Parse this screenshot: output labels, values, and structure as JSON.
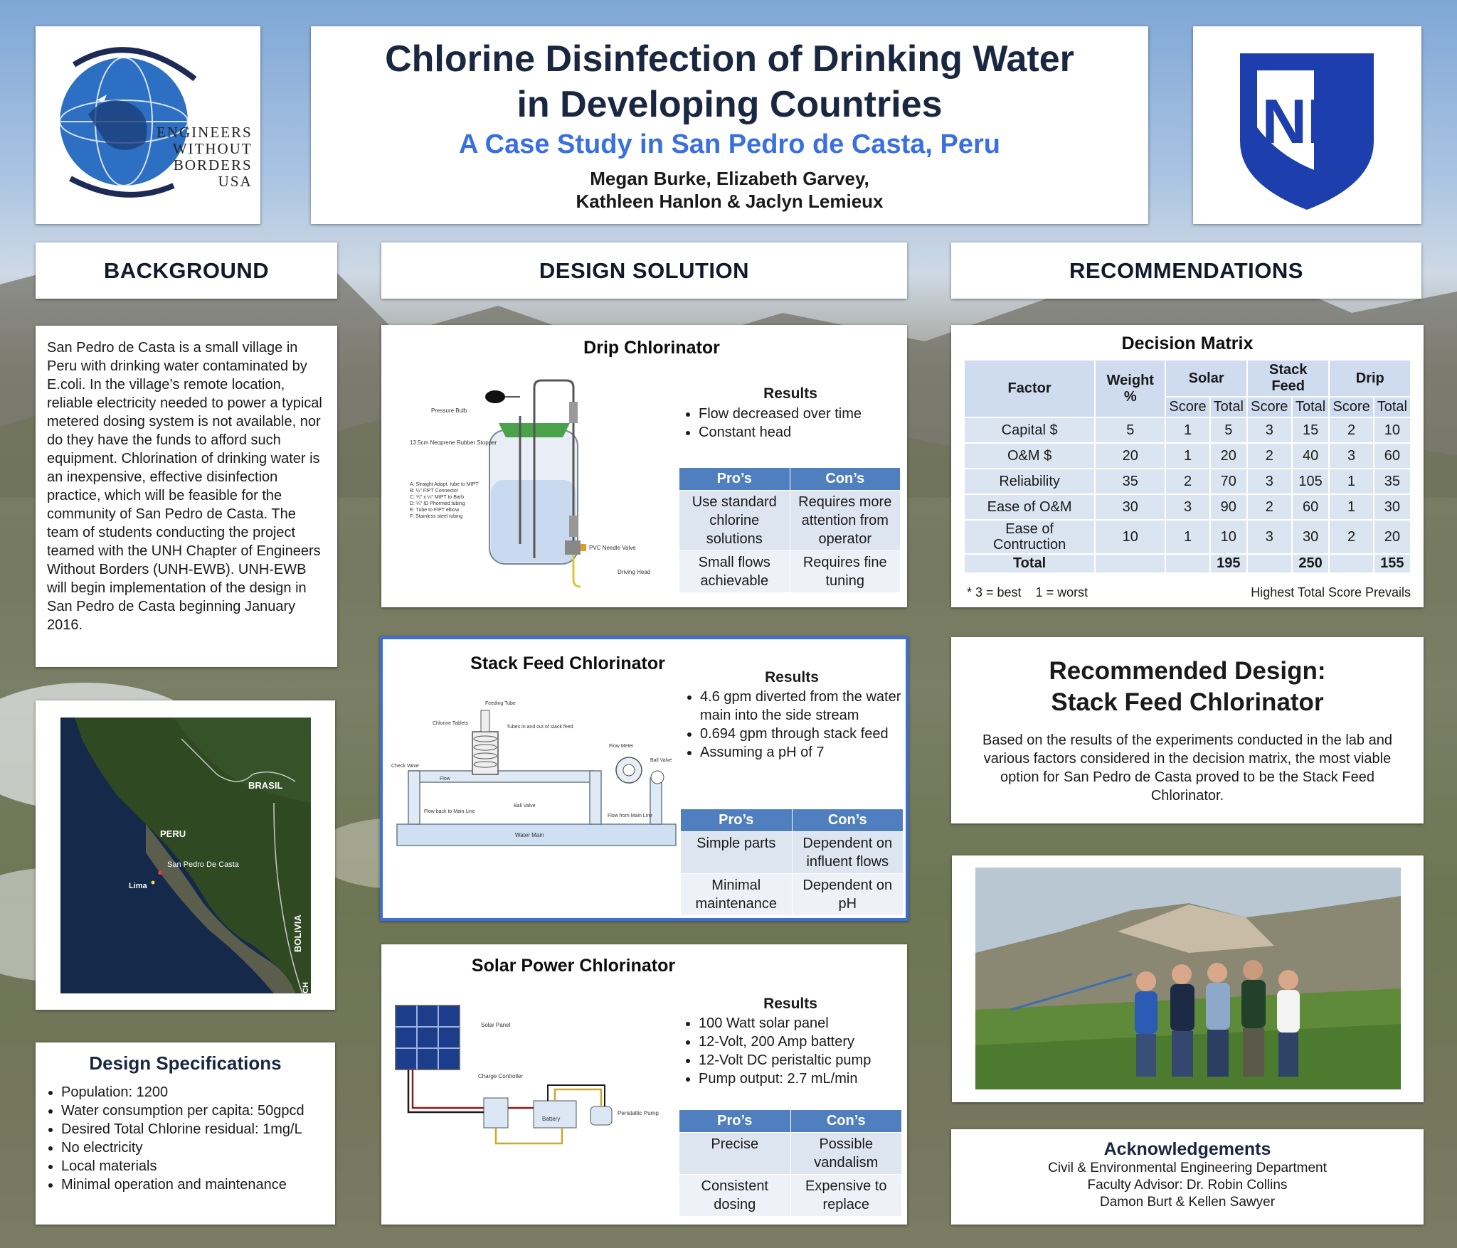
{
  "header": {
    "title_line1": "Chlorine Disinfection of Drinking Water",
    "title_line2": "in Developing Countries",
    "subtitle": "A Case Study in San Pedro de Casta, Peru",
    "authors_line1": "Megan Burke, Elizabeth Garvey,",
    "authors_line2": "Kathleen Hanlon & Jaclyn Lemieux"
  },
  "logos": {
    "ewb_line1": "ENGINEERS",
    "ewb_line2": "WITHOUT",
    "ewb_line3": "BORDERS",
    "ewb_line4": "USA",
    "unh": "NH"
  },
  "sections": {
    "background": "BACKGROUND",
    "design_solution": "DESIGN SOLUTION",
    "recommendations": "RECOMMENDATIONS"
  },
  "background_text": "San Pedro de Casta is a small village in Peru with drinking water contaminated by E.coli. In the village’s remote location, reliable electricity needed to power a typical metered dosing system is not available, nor do they have the funds to afford such equipment. Chlorination of drinking water is an inexpensive, effective disinfection practice, which will be feasible for the community of San Pedro de Casta. The team of students conducting the project teamed with the UNH Chapter of Engineers Without Borders (UNH-EWB). UNH-EWB will begin implementation of the design in San Pedro de Casta beginning January 2016.",
  "map": {
    "brasil": "BRASIL",
    "peru": "PERU",
    "site": "San Pedro De Casta",
    "lima": "Lima",
    "bolivia": "BOLIVIA",
    "chile": "CH"
  },
  "design_specs": {
    "title": "Design Specifications",
    "items": [
      "Population: 1200",
      "Water consumption per capita: 50gpcd",
      "Desired Total Chlorine residual: 1mg/L",
      "No electricity",
      "Local materials",
      "Minimal operation and maintenance"
    ]
  },
  "drip": {
    "title": "Drip Chlorinator",
    "results_title": "Results",
    "results": [
      "Flow decreased over time",
      "Constant head"
    ],
    "pros_header": "Pro’s",
    "cons_header": "Con’s",
    "rows": [
      [
        "Use standard chlorine solutions",
        "Requires more attention from operator"
      ],
      [
        "Small flows achievable",
        "Requires fine tuning"
      ]
    ],
    "diagram": {
      "pressure_bulb": "Pressure Bulb",
      "stopper": "13.5cm Neoprene Rubber Stopper",
      "legend": [
        "A: Straight Adapt. tube to MIPT",
        "B: ¼\" FIPT Connector",
        "C: ¼\" x ¼\" MIPT to Barb",
        "D: ¼\" ID Phormed tubing",
        "E: Tube to FIPT elbow",
        "F: Stainless steel tubing"
      ],
      "valve": "PVC Needle Valve",
      "driving_head": "Driving Head"
    }
  },
  "stack": {
    "title": "Stack Feed Chlorinator",
    "results_title": "Results",
    "results": [
      "4.6 gpm diverted from the water main into the side stream",
      "0.694 gpm through stack feed",
      "Assuming a pH of 7"
    ],
    "pros_header": "Pro’s",
    "cons_header": "Con’s",
    "rows": [
      [
        "Simple parts",
        "Dependent on influent flows"
      ],
      [
        "Minimal maintenance",
        "Dependent on pH"
      ]
    ],
    "diagram": {
      "feeding_tube": "Feeding Tube",
      "tablets": "Chlorine Tablets",
      "tubes": "Tubes in and out of stack feed",
      "flow_meter": "Flow Meter",
      "ball_valve": "Ball Valve",
      "check_valve": "Check Valve",
      "flow": "Flow",
      "ball_valve2": "Ball Valve",
      "flow_back": "Flow back to Main Line",
      "flow_from": "Flow from Main Line",
      "water_main": "Water Main"
    }
  },
  "solar": {
    "title": "Solar Power Chlorinator",
    "results_title": "Results",
    "results": [
      "100 Watt solar panel",
      "12-Volt, 200 Amp battery",
      "12-Volt DC peristaltic pump",
      "Pump output: 2.7 mL/min"
    ],
    "pros_header": "Pro’s",
    "cons_header": "Con’s",
    "rows": [
      [
        "Precise",
        "Possible vandalism"
      ],
      [
        "Consistent dosing",
        "Expensive to replace"
      ]
    ],
    "diagram": {
      "panel": "Solar Panel",
      "controller": "Charge Controller",
      "battery": "Battery",
      "pump": "Peristaltic Pump"
    }
  },
  "decision_matrix": {
    "title": "Decision Matrix",
    "headers": [
      "Factor",
      "Weight %",
      "Solar",
      "Stack Feed",
      "Drip"
    ],
    "subheaders": [
      "Score",
      "Total",
      "Score",
      "Total",
      "Score",
      "Total"
    ],
    "rows": [
      [
        "Capital $",
        "5",
        "1",
        "5",
        "3",
        "15",
        "2",
        "10"
      ],
      [
        "O&M $",
        "20",
        "1",
        "20",
        "2",
        "40",
        "3",
        "60"
      ],
      [
        "Reliability",
        "35",
        "2",
        "70",
        "3",
        "105",
        "1",
        "35"
      ],
      [
        "Ease of O&M",
        "30",
        "3",
        "90",
        "2",
        "60",
        "1",
        "30"
      ],
      [
        "Ease of Contruction",
        "10",
        "1",
        "10",
        "3",
        "30",
        "2",
        "20"
      ]
    ],
    "total_row": [
      "Total",
      "",
      "",
      "195",
      "",
      "250",
      "",
      "155"
    ],
    "footnote_left": "* 3 = best    1 = worst",
    "footnote_right": "Highest Total Score Prevails"
  },
  "recommended": {
    "title_line1": "Recommended Design:",
    "title_line2": "Stack Feed Chlorinator",
    "text": "Based on the results of the experiments conducted in the lab and various factors considered in the decision matrix, the most viable option for San Pedro de Casta proved to be the Stack Feed Chlorinator."
  },
  "acknowledgements": {
    "title": "Acknowledgements",
    "lines": [
      "Civil & Environmental Engineering Department",
      "Faculty Advisor: Dr. Robin Collins",
      "Damon Burt & Kellen Sawyer"
    ]
  },
  "colors": {
    "title_navy": "#1a2740",
    "subtitle_blue": "#3a6fe0",
    "table_header_blue": "#4f7fbf",
    "unh_blue": "#1d3fae"
  }
}
